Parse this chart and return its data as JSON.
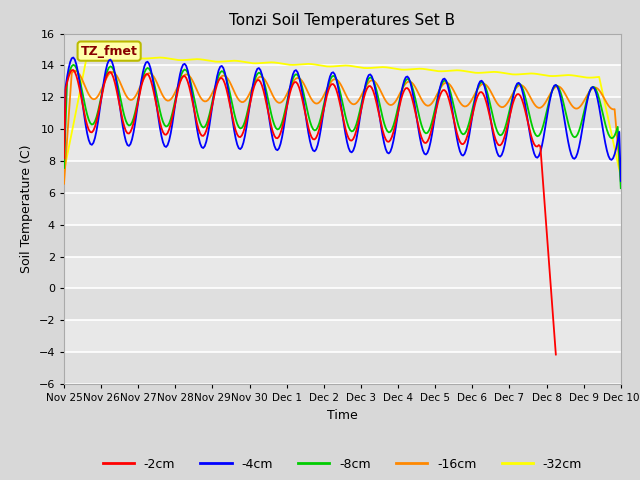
{
  "title": "Tonzi Soil Temperatures Set B",
  "xlabel": "Time",
  "ylabel": "Soil Temperature (C)",
  "ylim": [
    -6,
    16
  ],
  "yticks": [
    -6,
    -4,
    -2,
    0,
    2,
    4,
    6,
    8,
    10,
    12,
    14,
    16
  ],
  "bg_color": "#d8d8d8",
  "plot_bg_color": "#e8e8e8",
  "grid_color": "#ffffff",
  "annotation_text": "TZ_fmet",
  "annotation_color": "#880000",
  "annotation_bg": "#ffffaa",
  "series_colors": {
    "-2cm": "#ff0000",
    "-4cm": "#0000ff",
    "-8cm": "#00cc00",
    "-16cm": "#ff8800",
    "-32cm": "#ffff00"
  },
  "legend_labels": [
    "-2cm",
    "-4cm",
    "-8cm",
    "-16cm",
    "-32cm"
  ],
  "figsize": [
    6.4,
    4.8
  ],
  "dpi": 100
}
